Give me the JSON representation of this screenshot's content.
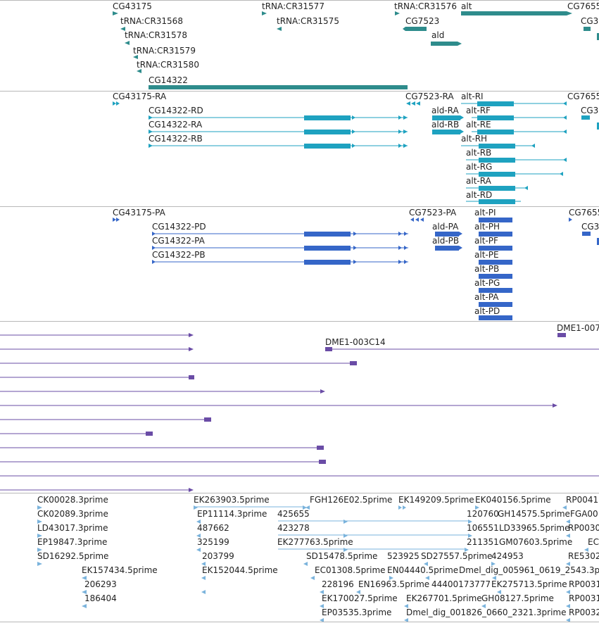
{
  "colors": {
    "gene": "#2e8c8c",
    "transcript": "#1ea2c0",
    "protein": "#3566c8",
    "alignment": "#6a4ca6",
    "est": "#7ab3dc",
    "divider": "#b8b8b8"
  },
  "tracks": {
    "genes": {
      "labels": [
        "CG43175",
        "tRNA:CR31568",
        "tRNA:CR31578",
        "tRNA:CR31579",
        "tRNA:CR31580",
        "CG14322",
        "tRNA:CR31577",
        "tRNA:CR31575",
        "tRNA:CR31576",
        "alt",
        "CG7523",
        "ald",
        "CG7655",
        "CG3"
      ]
    },
    "transcripts": {
      "labels": [
        "CG43175-RA",
        "CG14322-RD",
        "CG14322-RA",
        "CG14322-RB",
        "CG7523-RA",
        "ald-RA",
        "ald-RB",
        "alt-RI",
        "alt-RF",
        "alt-RE",
        "alt-RH",
        "alt-RB",
        "alt-RG",
        "alt-RA",
        "alt-RD",
        "CG7655",
        "CG3"
      ]
    },
    "proteins": {
      "labels": [
        "CG43175-PA",
        "CG14322-PD",
        "CG14322-PA",
        "CG14322-PB",
        "CG7523-PA",
        "ald-PA",
        "ald-PB",
        "alt-PI",
        "alt-PH",
        "alt-PF",
        "alt-PE",
        "alt-PB",
        "alt-PG",
        "alt-PA",
        "alt-PD",
        "CG7655",
        "CG3"
      ]
    },
    "alignments": {
      "labels": [
        "DME1-003C14",
        "DME1-007"
      ]
    },
    "ests": {
      "labels": [
        "CK00028.3prime",
        "CK02089.3prime",
        "LD43017.3prime",
        "EP19847.3prime",
        "SD16292.5prime",
        "EK157434.5prime",
        "206293",
        "186404",
        "EK263903.5prime",
        "EP11114.3prime",
        "487662",
        "325199",
        "203799",
        "EK152044.5prime",
        "FGH126E02.5prime",
        "425655",
        "423278",
        "EK277763.5prime",
        "SD15478.5prime",
        "EC01308.5prime",
        "228196",
        "EK170027.5prime",
        "EP03535.3prime",
        "EN16963.5prime",
        "EK149209.5prime",
        "EK040156.5prime",
        "120760",
        "106551",
        "211351",
        "GH14575.5prime",
        "LD33965.5prime",
        "GM07603.5prime",
        "523925",
        "SD27557.5prime",
        "424953",
        "EN04440.5prime",
        "Dmel_dig_005961_0619_2543.3p",
        "44400173777",
        "EK275713.5prime",
        "EK267701.5prime",
        "GH08127.5prime",
        "Dmel_dig_001826_0660_2321.3prime",
        "RP0041",
        "FGA00",
        "RP0030",
        "EC",
        "RE5302",
        "RP0031",
        "RP0031",
        "RP0032"
      ]
    }
  }
}
